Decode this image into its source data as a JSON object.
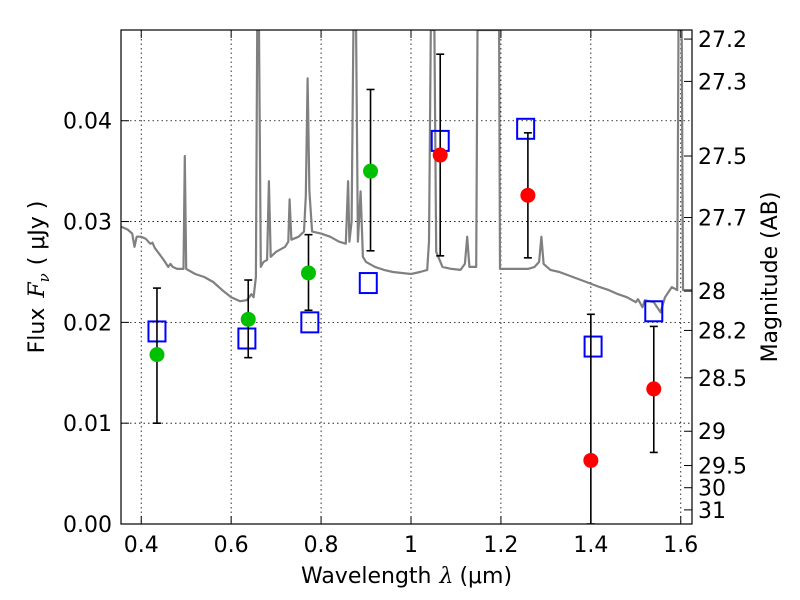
{
  "chart_data": {
    "type": "scatter",
    "title": "",
    "xlabel": {
      "prefix": "Wavelength",
      "symbol": "λ",
      "unit": "(μm)"
    },
    "ylabel": {
      "prefix": "Flux",
      "symbol": "F",
      "subscript": "ν",
      "unit": "( μJy )"
    },
    "y2label": "Magnitude (AB)",
    "xlim": [
      0.355,
      1.625
    ],
    "ylim": [
      0.0,
      0.049
    ],
    "grid": true,
    "xticks": [
      0.4,
      0.6,
      0.8,
      1.0,
      1.2,
      1.4,
      1.6
    ],
    "xtick_labels": [
      "0.4",
      "0.6",
      "0.8",
      "1",
      "1.2",
      "1.4",
      "1.6"
    ],
    "yticks": [
      0.0,
      0.01,
      0.02,
      0.03,
      0.04
    ],
    "ytick_labels": [
      "0.00",
      "0.01",
      "0.02",
      "0.03",
      "0.04"
    ],
    "y2ticks": [
      {
        "label": "27.2",
        "flux": 0.0481
      },
      {
        "label": "27.3",
        "flux": 0.0439
      },
      {
        "label": "27.5",
        "flux": 0.0365
      },
      {
        "label": "27.7",
        "flux": 0.0304
      },
      {
        "label": "28",
        "flux": 0.0231
      },
      {
        "label": "28.2",
        "flux": 0.0192
      },
      {
        "label": "28.5",
        "flux": 0.0145
      },
      {
        "label": "29",
        "flux": 0.0092
      },
      {
        "label": "29.5",
        "flux": 0.0058
      },
      {
        "label": "30",
        "flux": 0.0036
      },
      {
        "label": "31",
        "flux": 0.0014
      }
    ],
    "series": [
      {
        "kind": "model-spectrum",
        "color": "#808080",
        "points": [
          [
            0.355,
            0.0295
          ],
          [
            0.37,
            0.0292
          ],
          [
            0.38,
            0.0288
          ],
          [
            0.385,
            0.0275
          ],
          [
            0.39,
            0.0285
          ],
          [
            0.4,
            0.0285
          ],
          [
            0.41,
            0.0283
          ],
          [
            0.42,
            0.0278
          ],
          [
            0.425,
            0.0279
          ],
          [
            0.43,
            0.0274
          ],
          [
            0.44,
            0.0268
          ],
          [
            0.45,
            0.0262
          ],
          [
            0.46,
            0.0255
          ],
          [
            0.465,
            0.0258
          ],
          [
            0.47,
            0.0255
          ],
          [
            0.48,
            0.0253
          ],
          [
            0.49,
            0.0253
          ],
          [
            0.494,
            0.0253
          ],
          [
            0.497,
            0.0365
          ],
          [
            0.5,
            0.0253
          ],
          [
            0.52,
            0.0248
          ],
          [
            0.54,
            0.0245
          ],
          [
            0.56,
            0.024
          ],
          [
            0.58,
            0.0232
          ],
          [
            0.6,
            0.0225
          ],
          [
            0.62,
            0.0221
          ],
          [
            0.635,
            0.0222
          ],
          [
            0.645,
            0.0228
          ],
          [
            0.65,
            0.0225
          ],
          [
            0.655,
            0.0245
          ],
          [
            0.658,
            0.049
          ],
          [
            0.662,
            0.049
          ],
          [
            0.666,
            0.0255
          ],
          [
            0.672,
            0.026
          ],
          [
            0.68,
            0.0262
          ],
          [
            0.684,
            0.034
          ],
          [
            0.688,
            0.0265
          ],
          [
            0.7,
            0.027
          ],
          [
            0.72,
            0.0275
          ],
          [
            0.727,
            0.028
          ],
          [
            0.73,
            0.0322
          ],
          [
            0.734,
            0.0282
          ],
          [
            0.75,
            0.0285
          ],
          [
            0.762,
            0.029
          ],
          [
            0.766,
            0.0325
          ],
          [
            0.77,
            0.0442
          ],
          [
            0.774,
            0.033
          ],
          [
            0.78,
            0.029
          ],
          [
            0.8,
            0.0288
          ],
          [
            0.82,
            0.0285
          ],
          [
            0.84,
            0.028
          ],
          [
            0.855,
            0.0278
          ],
          [
            0.86,
            0.034
          ],
          [
            0.863,
            0.028
          ],
          [
            0.868,
            0.03
          ],
          [
            0.872,
            0.049
          ],
          [
            0.878,
            0.049
          ],
          [
            0.882,
            0.028
          ],
          [
            0.888,
            0.033
          ],
          [
            0.893,
            0.0265
          ],
          [
            0.9,
            0.026
          ],
          [
            0.92,
            0.0255
          ],
          [
            0.94,
            0.0252
          ],
          [
            0.96,
            0.025
          ],
          [
            0.98,
            0.0249
          ],
          [
            1.0,
            0.0248
          ],
          [
            1.02,
            0.025
          ],
          [
            1.036,
            0.0252
          ],
          [
            1.04,
            0.028
          ],
          [
            1.044,
            0.049
          ],
          [
            1.052,
            0.049
          ],
          [
            1.056,
            0.027
          ],
          [
            1.07,
            0.0255
          ],
          [
            1.09,
            0.0253
          ],
          [
            1.11,
            0.0252
          ],
          [
            1.12,
            0.0258
          ],
          [
            1.125,
            0.0285
          ],
          [
            1.13,
            0.0255
          ],
          [
            1.145,
            0.0255
          ],
          [
            1.148,
            0.049
          ],
          [
            1.19,
            0.049
          ],
          [
            1.196,
            0.049
          ],
          [
            1.198,
            0.0253
          ],
          [
            1.21,
            0.0253
          ],
          [
            1.24,
            0.0253
          ],
          [
            1.26,
            0.0253
          ],
          [
            1.275,
            0.0255
          ],
          [
            1.285,
            0.026
          ],
          [
            1.29,
            0.0285
          ],
          [
            1.295,
            0.0258
          ],
          [
            1.31,
            0.0252
          ],
          [
            1.33,
            0.025
          ],
          [
            1.36,
            0.0245
          ],
          [
            1.39,
            0.024
          ],
          [
            1.42,
            0.0235
          ],
          [
            1.44,
            0.0232
          ],
          [
            1.46,
            0.0228
          ],
          [
            1.48,
            0.0225
          ],
          [
            1.5,
            0.022
          ],
          [
            1.505,
            0.0223
          ],
          [
            1.515,
            0.0215
          ],
          [
            1.52,
            0.0222
          ],
          [
            1.54,
            0.022
          ],
          [
            1.555,
            0.021
          ],
          [
            1.565,
            0.0225
          ],
          [
            1.58,
            0.0235
          ],
          [
            1.592,
            0.0232
          ],
          [
            1.595,
            0.049
          ],
          [
            1.602,
            0.049
          ],
          [
            1.605,
            0.0232
          ],
          [
            1.625,
            0.0232
          ]
        ]
      },
      {
        "kind": "model-bands",
        "marker": "open-square",
        "color": "#0000ff",
        "points": [
          [
            0.435,
            0.0191
          ],
          [
            0.635,
            0.0184
          ],
          [
            0.775,
            0.02
          ],
          [
            0.905,
            0.0239
          ],
          [
            1.065,
            0.038
          ],
          [
            1.255,
            0.0392
          ],
          [
            1.405,
            0.0176
          ],
          [
            1.54,
            0.0211
          ]
        ]
      },
      {
        "kind": "optical-detections",
        "marker": "filled-circle",
        "color": "#00c000",
        "points": [
          {
            "x": 0.435,
            "y": 0.0168,
            "err": [
              0.01,
              0.0234
            ]
          },
          {
            "x": 0.638,
            "y": 0.0203,
            "err": [
              0.0165,
              0.0242
            ]
          },
          {
            "x": 0.772,
            "y": 0.0249,
            "err": [
              0.0212,
              0.0287
            ]
          },
          {
            "x": 0.91,
            "y": 0.035,
            "err": [
              0.0271,
              0.0431
            ]
          }
        ]
      },
      {
        "kind": "infrared-detections",
        "marker": "filled-circle",
        "color": "#ff0000",
        "points": [
          {
            "x": 1.065,
            "y": 0.0366,
            "err": [
              0.0266,
              0.0466
            ]
          },
          {
            "x": 1.26,
            "y": 0.0326,
            "err": [
              0.0264,
              0.0388
            ]
          },
          {
            "x": 1.4,
            "y": 0.0063,
            "err": [
              0.0,
              0.0208
            ]
          },
          {
            "x": 1.54,
            "y": 0.0134,
            "err": [
              0.0071,
              0.0196
            ]
          }
        ]
      }
    ]
  }
}
